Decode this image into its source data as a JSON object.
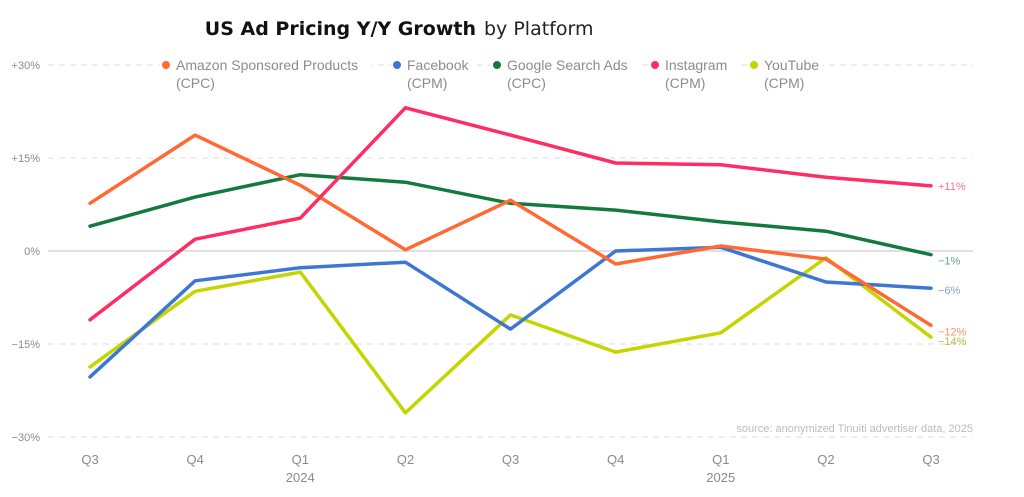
{
  "chart_data": {
    "type": "line",
    "title": "US Ad Pricing Y/Y Growth",
    "title_suffix": "by Platform",
    "xlabel": "",
    "ylabel": "",
    "ylim": [
      -30,
      30
    ],
    "yticks": [
      30,
      15,
      0,
      -15,
      -30
    ],
    "ytick_labels": [
      "+30%",
      "+15%",
      "0%",
      "−15%",
      "−30%"
    ],
    "grid": true,
    "legend_position": "top",
    "categories": [
      "Q3",
      "Q4",
      "Q1",
      "Q2",
      "Q3",
      "Q4",
      "Q1",
      "Q2",
      "Q3"
    ],
    "year_labels": [
      "",
      "",
      "2024",
      "",
      "",
      "",
      "2025",
      "",
      ""
    ],
    "series": [
      {
        "name": "Amazon Sponsored Products",
        "unit": "(CPC)",
        "color": "#ff6a34",
        "label_color": "#ff8f6a",
        "end_label": "−12%",
        "values": [
          7.7,
          18.7,
          10.6,
          0.2,
          8.2,
          -2.1,
          0.8,
          -1.3,
          -12
        ]
      },
      {
        "name": "Facebook",
        "unit": "(CPM)",
        "color": "#3e76d4",
        "label_color": "#7da2e2",
        "end_label": "−6%",
        "values": [
          -20.3,
          -4.8,
          -2.7,
          -1.8,
          -12.6,
          0,
          0.6,
          -5,
          -6
        ]
      },
      {
        "name": "Google Search Ads",
        "unit": "(CPC)",
        "color": "#137a3e",
        "label_color": "#5fa77a",
        "end_label": "−1%",
        "values": [
          4.0,
          8.7,
          12.3,
          11.1,
          7.7,
          6.6,
          4.7,
          3.2,
          -0.6
        ]
      },
      {
        "name": "Instagram",
        "unit": "(CPM)",
        "color": "#fe2e63",
        "label_color": "#ff6e92",
        "end_label": "+11%",
        "values": [
          -11.1,
          1.9,
          5.3,
          23.1,
          18.7,
          14.2,
          13.9,
          11.9,
          10.5
        ]
      },
      {
        "name": "YouTube",
        "unit": "(CPM)",
        "color": "#c5d500",
        "label_color": "#b5c040",
        "end_label": "−14%",
        "values": [
          -18.7,
          -6.5,
          -3.4,
          -26.1,
          -10.3,
          -16.3,
          -13.2,
          -1.1,
          -13.9
        ]
      }
    ],
    "source_note": "source: anonymized Tinuiti advertiser data, 2025"
  }
}
